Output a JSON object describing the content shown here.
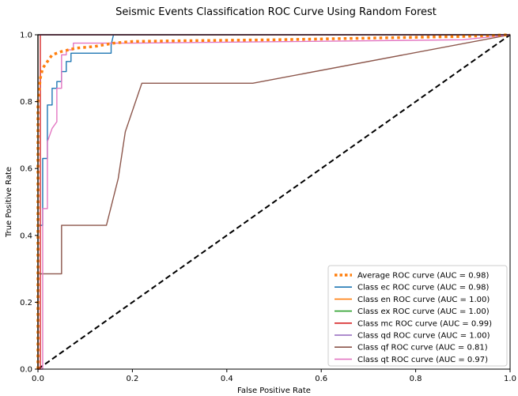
{
  "chart_data": {
    "type": "line",
    "title": "Seismic Events Classification ROC Curve Using Random Forest",
    "xlabel": "False Positive Rate",
    "ylabel": "True Positive Rate",
    "xlim": [
      0.0,
      1.0
    ],
    "ylim": [
      0.0,
      1.0
    ],
    "xticks": [
      "0.0",
      "0.2",
      "0.4",
      "0.6",
      "0.8",
      "1.0"
    ],
    "yticks": [
      "0.0",
      "0.2",
      "0.4",
      "0.6",
      "0.8",
      "1.0"
    ],
    "grid": false,
    "legend_position": "lower-right",
    "series": [
      {
        "name": "Average ROC curve (AUC = 0.98)",
        "color": "#ff7f0e",
        "style": "dotted",
        "x": [
          0.0,
          0.0,
          0.005,
          0.01,
          0.02,
          0.03,
          0.05,
          0.08,
          0.12,
          0.16,
          0.2,
          0.3,
          0.5,
          0.7,
          0.9,
          1.0
        ],
        "y": [
          0.0,
          0.8,
          0.87,
          0.9,
          0.92,
          0.94,
          0.95,
          0.96,
          0.965,
          0.975,
          0.98,
          0.982,
          0.985,
          0.99,
          0.995,
          1.0
        ]
      },
      {
        "name": "Class ec ROC curve (AUC = 0.98)",
        "color": "#1f77b4",
        "style": "solid",
        "x": [
          0.0,
          0.0,
          0.01,
          0.01,
          0.02,
          0.02,
          0.03,
          0.03,
          0.04,
          0.04,
          0.05,
          0.05,
          0.06,
          0.06,
          0.07,
          0.07,
          0.155,
          0.155,
          0.16,
          1.0
        ],
        "y": [
          0.0,
          0.43,
          0.43,
          0.63,
          0.63,
          0.79,
          0.79,
          0.84,
          0.84,
          0.86,
          0.86,
          0.89,
          0.89,
          0.92,
          0.92,
          0.945,
          0.945,
          0.97,
          1.0,
          1.0
        ]
      },
      {
        "name": "Class en ROC curve (AUC = 1.00)",
        "color": "#ff7f0e",
        "style": "solid",
        "x": [
          0.0,
          0.0,
          1.0
        ],
        "y": [
          0.0,
          1.0,
          1.0
        ]
      },
      {
        "name": "Class ex ROC curve (AUC = 1.00)",
        "color": "#2ca02c",
        "style": "solid",
        "x": [
          0.0,
          0.0,
          1.0
        ],
        "y": [
          0.0,
          1.0,
          1.0
        ]
      },
      {
        "name": "Class mc ROC curve (AUC = 0.99)",
        "color": "#d62728",
        "style": "solid",
        "x": [
          0.0,
          0.0,
          0.005,
          0.005,
          1.0
        ],
        "y": [
          0.0,
          0.0,
          0.0,
          1.0,
          1.0
        ]
      },
      {
        "name": "Class qd ROC curve (AUC = 1.00)",
        "color": "#9467bd",
        "style": "solid",
        "x": [
          0.0,
          0.0,
          1.0
        ],
        "y": [
          0.0,
          1.0,
          1.0
        ]
      },
      {
        "name": "Class qf ROC curve (AUC = 0.81)",
        "color": "#8c564b",
        "style": "solid",
        "x": [
          0.0,
          0.0,
          0.05,
          0.05,
          0.145,
          0.17,
          0.185,
          0.22,
          0.455,
          1.0
        ],
        "y": [
          0.0,
          0.285,
          0.285,
          0.43,
          0.43,
          0.57,
          0.71,
          0.855,
          0.855,
          1.0
        ]
      },
      {
        "name": "Class qt ROC curve (AUC = 0.97)",
        "color": "#e377c2",
        "style": "solid",
        "x": [
          0.0,
          0.01,
          0.01,
          0.02,
          0.02,
          0.03,
          0.04,
          0.04,
          0.05,
          0.05,
          0.06,
          0.06,
          0.07,
          0.075,
          0.075,
          0.16,
          0.2,
          0.9,
          1.0
        ],
        "y": [
          0.0,
          0.0,
          0.48,
          0.48,
          0.68,
          0.72,
          0.74,
          0.84,
          0.84,
          0.94,
          0.94,
          0.955,
          0.955,
          0.955,
          0.975,
          0.975,
          0.975,
          0.985,
          1.0
        ]
      },
      {
        "name": "",
        "color": "#000000",
        "style": "dashed",
        "x": [
          0.0,
          1.0
        ],
        "y": [
          0.0,
          1.0
        ]
      }
    ]
  }
}
